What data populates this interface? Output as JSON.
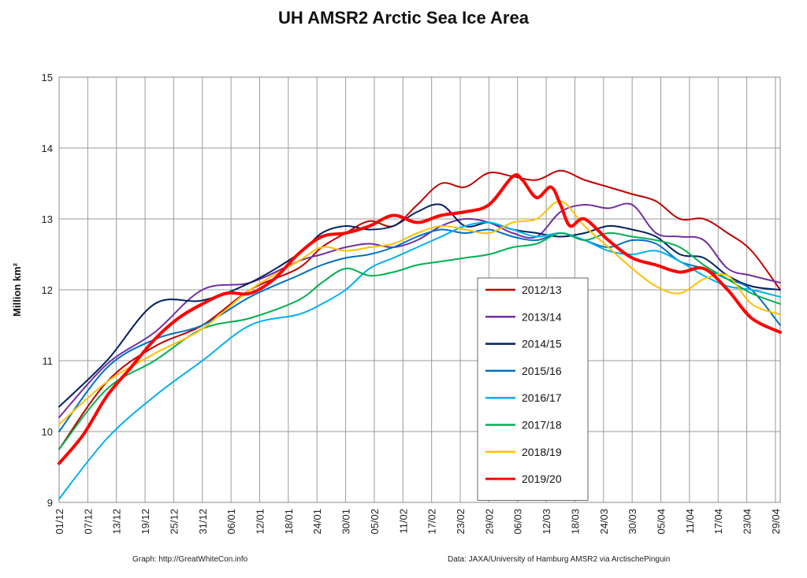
{
  "chart_data": {
    "type": "line",
    "title": "UH AMSR2 Arctic Sea Ice Area",
    "ylabel": "Million km²",
    "xlabel": "",
    "ylim": [
      9,
      15
    ],
    "yticks": [
      9,
      10,
      11,
      12,
      13,
      14,
      15
    ],
    "x_tick_labels": [
      "01/12",
      "07/12",
      "13/12",
      "19/12",
      "25/12",
      "31/12",
      "06/01",
      "12/01",
      "18/01",
      "24/01",
      "30/01",
      "05/02",
      "11/02",
      "17/02",
      "23/02",
      "29/02",
      "06/03",
      "12/03",
      "18/03",
      "24/03",
      "30/03",
      "05/04",
      "11/04",
      "17/04",
      "23/04",
      "29/04"
    ],
    "x_unit": "day offset from 01/12, tick every 6 days",
    "x_range": [
      0,
      151
    ],
    "grid": true,
    "legend_position": "center-right",
    "series": [
      {
        "name": "2012/13",
        "color": "#c00000",
        "width": 2,
        "x": [
          0,
          10,
          20,
          30,
          40,
          50,
          55,
          60,
          65,
          70,
          75,
          80,
          85,
          90,
          95,
          100,
          105,
          110,
          115,
          120,
          125,
          130,
          135,
          140,
          145,
          151
        ],
        "y": [
          9.75,
          10.7,
          11.2,
          11.5,
          12.0,
          12.3,
          12.6,
          12.8,
          12.97,
          12.9,
          13.2,
          13.5,
          13.45,
          13.65,
          13.6,
          13.55,
          13.68,
          13.55,
          13.45,
          13.35,
          13.25,
          13.0,
          13.0,
          12.8,
          12.55,
          12.0
        ]
      },
      {
        "name": "2013/14",
        "color": "#7030a0",
        "width": 2,
        "x": [
          0,
          10,
          20,
          30,
          40,
          50,
          55,
          60,
          65,
          70,
          75,
          80,
          85,
          90,
          95,
          100,
          105,
          110,
          115,
          120,
          125,
          130,
          135,
          140,
          145,
          151
        ],
        "y": [
          10.2,
          10.95,
          11.4,
          12.0,
          12.1,
          12.4,
          12.5,
          12.6,
          12.65,
          12.6,
          12.7,
          12.9,
          13.0,
          12.95,
          12.8,
          12.75,
          13.1,
          13.2,
          13.15,
          13.2,
          12.8,
          12.75,
          12.7,
          12.3,
          12.2,
          12.1
        ]
      },
      {
        "name": "2014/15",
        "color": "#002060",
        "width": 2,
        "x": [
          0,
          10,
          20,
          30,
          40,
          50,
          55,
          60,
          65,
          70,
          75,
          80,
          85,
          90,
          95,
          100,
          105,
          110,
          115,
          120,
          125,
          130,
          135,
          140,
          145,
          151
        ],
        "y": [
          10.35,
          11.0,
          11.8,
          11.85,
          12.1,
          12.5,
          12.8,
          12.9,
          12.85,
          12.9,
          13.1,
          13.2,
          12.9,
          12.95,
          12.85,
          12.8,
          12.75,
          12.8,
          12.9,
          12.85,
          12.75,
          12.5,
          12.45,
          12.2,
          12.05,
          12.0
        ]
      },
      {
        "name": "2015/16",
        "color": "#0070c0",
        "width": 2,
        "x": [
          0,
          10,
          20,
          30,
          40,
          50,
          55,
          60,
          65,
          70,
          75,
          80,
          85,
          90,
          95,
          100,
          105,
          110,
          115,
          120,
          125,
          130,
          135,
          140,
          145,
          151
        ],
        "y": [
          10.0,
          10.9,
          11.3,
          11.5,
          11.9,
          12.2,
          12.35,
          12.45,
          12.5,
          12.6,
          12.75,
          12.85,
          12.8,
          12.85,
          12.75,
          12.7,
          12.8,
          12.7,
          12.6,
          12.7,
          12.65,
          12.4,
          12.3,
          12.15,
          12.0,
          11.5
        ]
      },
      {
        "name": "2016/17",
        "color": "#00b0f0",
        "width": 2,
        "x": [
          0,
          10,
          20,
          30,
          40,
          50,
          55,
          60,
          65,
          70,
          75,
          80,
          85,
          90,
          95,
          100,
          105,
          110,
          115,
          120,
          125,
          130,
          135,
          140,
          145,
          151
        ],
        "y": [
          9.05,
          9.9,
          10.5,
          11.0,
          11.5,
          11.65,
          11.8,
          12.0,
          12.3,
          12.45,
          12.6,
          12.75,
          12.9,
          12.95,
          12.85,
          12.75,
          12.8,
          12.7,
          12.55,
          12.5,
          12.55,
          12.4,
          12.2,
          12.05,
          12.0,
          11.9
        ]
      },
      {
        "name": "2017/18",
        "color": "#00b050",
        "width": 2,
        "x": [
          0,
          10,
          20,
          30,
          40,
          50,
          55,
          60,
          65,
          70,
          75,
          80,
          85,
          90,
          95,
          100,
          105,
          110,
          115,
          120,
          125,
          130,
          135,
          140,
          145,
          151
        ],
        "y": [
          9.75,
          10.6,
          11.0,
          11.45,
          11.6,
          11.85,
          12.1,
          12.3,
          12.2,
          12.25,
          12.35,
          12.4,
          12.45,
          12.5,
          12.6,
          12.65,
          12.8,
          12.7,
          12.8,
          12.75,
          12.7,
          12.6,
          12.35,
          12.15,
          11.95,
          11.8
        ]
      },
      {
        "name": "2018/19",
        "color": "#ffc000",
        "width": 2,
        "x": [
          0,
          10,
          20,
          30,
          40,
          50,
          55,
          60,
          65,
          70,
          75,
          80,
          85,
          90,
          95,
          100,
          105,
          110,
          115,
          120,
          125,
          130,
          135,
          140,
          145,
          151
        ],
        "y": [
          10.1,
          10.7,
          11.1,
          11.45,
          12.0,
          12.4,
          12.6,
          12.55,
          12.6,
          12.65,
          12.8,
          12.9,
          12.85,
          12.8,
          12.95,
          13.0,
          13.25,
          12.9,
          12.6,
          12.3,
          12.05,
          11.95,
          12.15,
          12.2,
          11.8,
          11.65
        ]
      },
      {
        "name": "2019/20",
        "color": "#ff0000",
        "width": 4,
        "x": [
          0,
          5,
          10,
          15,
          20,
          25,
          30,
          35,
          40,
          45,
          50,
          55,
          60,
          65,
          70,
          75,
          80,
          85,
          90,
          95,
          97,
          100,
          103,
          105,
          107,
          110,
          115,
          120,
          125,
          130,
          135,
          140,
          145,
          151
        ],
        "y": [
          9.55,
          9.95,
          10.5,
          10.9,
          11.3,
          11.6,
          11.8,
          11.95,
          11.95,
          12.15,
          12.5,
          12.75,
          12.8,
          12.9,
          13.05,
          12.95,
          13.05,
          13.1,
          13.2,
          13.6,
          13.55,
          13.3,
          13.45,
          13.2,
          12.9,
          13.0,
          12.7,
          12.45,
          12.35,
          12.25,
          12.3,
          12.0,
          11.6,
          11.4
        ]
      }
    ]
  },
  "footer": {
    "left": "Graph: http://GreatWhiteCon.info",
    "right": "Data: JAXA/University of Hamburg AMSR2  via  ArctischePinguin"
  }
}
